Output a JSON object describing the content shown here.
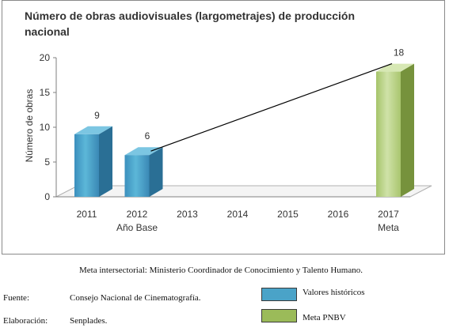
{
  "chart_data": {
    "type": "bar",
    "title": "Número de obras audiovisuales (largometrajes) de producción nacional",
    "ylabel": "Número de obras",
    "xlabel": "",
    "ylim": [
      0,
      20
    ],
    "yticks": [
      0,
      5,
      10,
      15,
      20
    ],
    "categories": [
      "2011",
      "2012",
      "2013",
      "2014",
      "2015",
      "2016",
      "2017"
    ],
    "category_sublabels": [
      "",
      "Año Base",
      "",
      "",
      "",
      "",
      "Meta"
    ],
    "series": [
      {
        "name": "Valores históricos",
        "values": [
          9,
          6,
          null,
          null,
          null,
          null,
          null
        ],
        "color": "#4aa3c8"
      },
      {
        "name": "Meta PNBV",
        "values": [
          null,
          null,
          null,
          null,
          null,
          null,
          18
        ],
        "color": "#9bbb59"
      }
    ],
    "data_labels": [
      "9",
      "6",
      "",
      "",
      "",
      "",
      "18"
    ],
    "trend_line": {
      "from": "2012",
      "to": "2017"
    },
    "grid": false,
    "legend": "below"
  },
  "notes": {
    "meta_text": "Meta intersectorial: Ministerio Coordinador de Conocimiento y Talento Humano.",
    "fuente_label": "Fuente:",
    "fuente_value": "Consejo Nacional de Cinematografía.",
    "elaboracion_label": "Elaboración:",
    "elaboracion_value": "Senplades."
  },
  "legend_items": [
    "Valores históricos",
    "Meta PNBV"
  ]
}
